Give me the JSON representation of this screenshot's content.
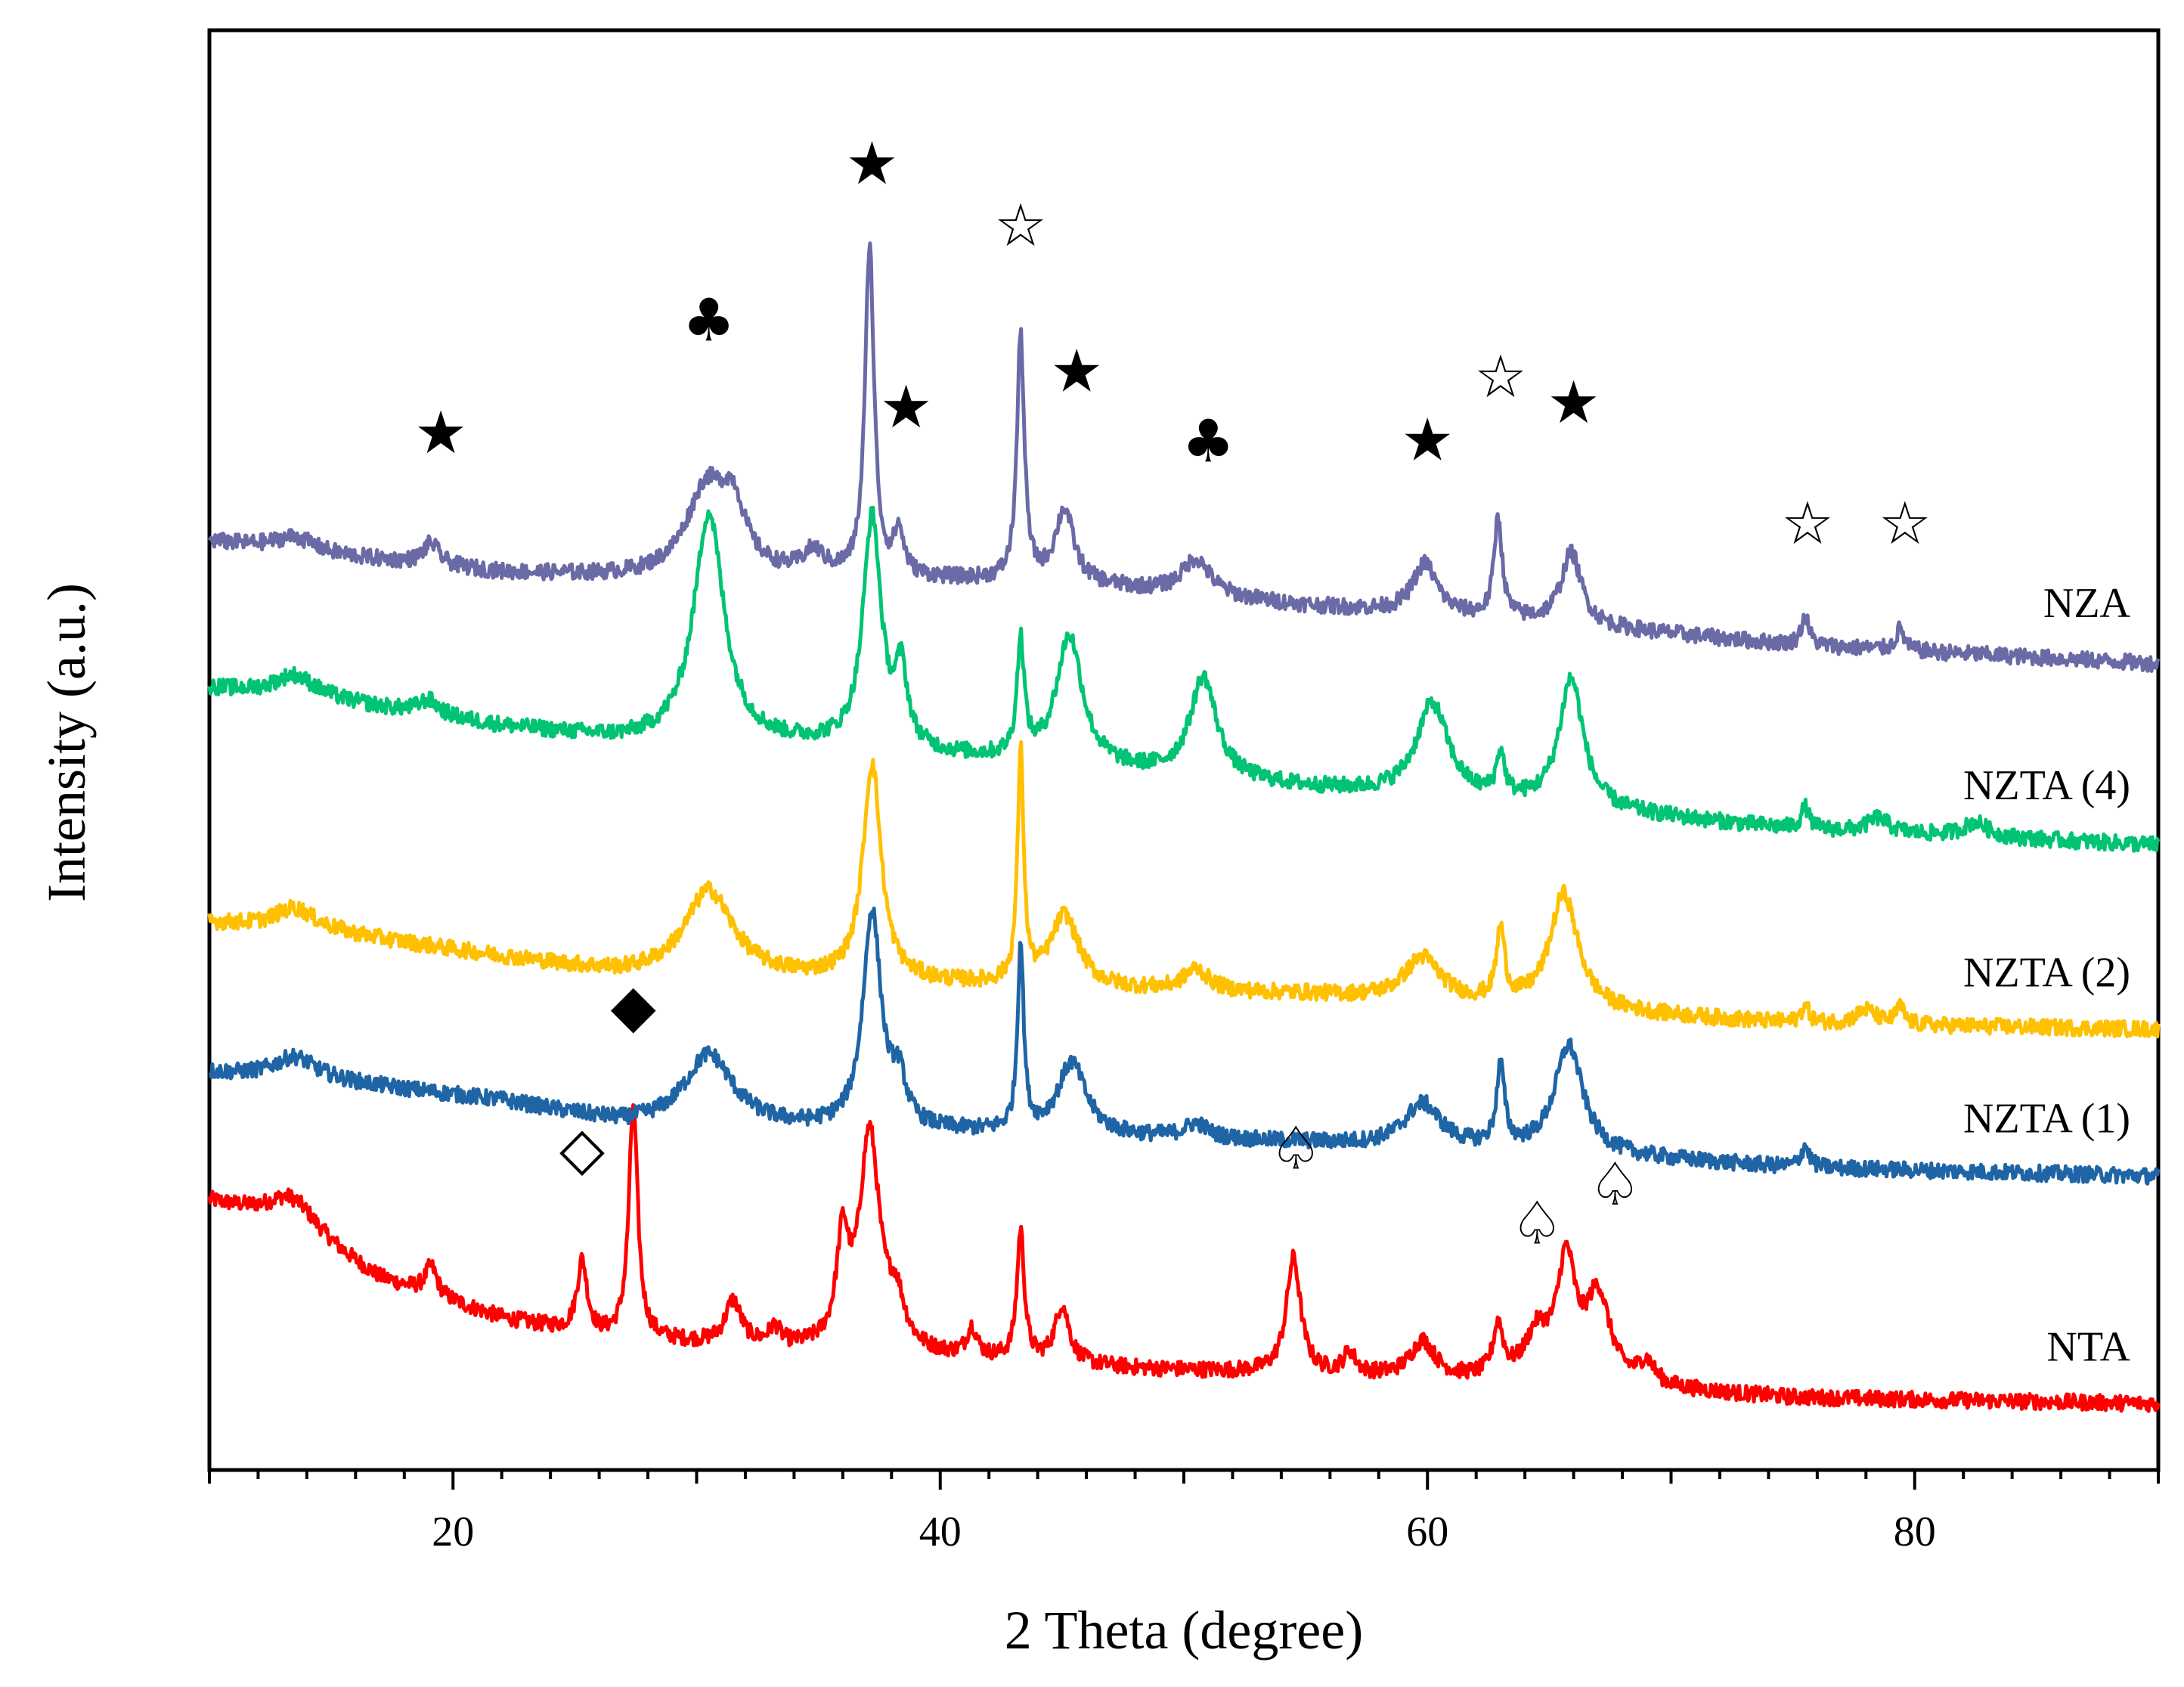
{
  "chart_data": {
    "type": "line",
    "title": "",
    "xlabel": "2 Theta (degree)",
    "ylabel": "Intensity (a.u.)",
    "xlim": [
      10,
      90
    ],
    "ylim": [
      0,
      100
    ],
    "xticks": [
      20,
      40,
      60,
      80
    ],
    "yticks": [],
    "grid": false,
    "legend": "inline labels at right end of each trace",
    "series": [
      {
        "name": "NTA",
        "color": "#ff0000",
        "baseline": [
          [
            10,
            18.6
          ],
          [
            13,
            17.3
          ],
          [
            17,
            13.2
          ],
          [
            22,
            10.5
          ],
          [
            26,
            9.2
          ],
          [
            33,
            8.4
          ],
          [
            40,
            7.8
          ],
          [
            48,
            7.0
          ],
          [
            55,
            6.6
          ],
          [
            65,
            6.0
          ],
          [
            75,
            5.0
          ],
          [
            90,
            4.6
          ]
        ],
        "peaks": [
          [
            13.5,
            2.0,
            1.2
          ],
          [
            19.1,
            2.0,
            0.3
          ],
          [
            25.3,
            5.0,
            0.25
          ],
          [
            27.4,
            16.2,
            0.22
          ],
          [
            31.5,
            3.0,
            0.4
          ],
          [
            33.2,
            1.2,
            0.3
          ],
          [
            36.0,
            7.0,
            0.3
          ],
          [
            37.1,
            15.0,
            0.5
          ],
          [
            38.2,
            3.0,
            0.4
          ],
          [
            41.3,
            2.0,
            0.25
          ],
          [
            43.3,
            9.0,
            0.18
          ],
          [
            45.0,
            4.0,
            0.35
          ],
          [
            54.5,
            8.0,
            0.35
          ],
          [
            56.8,
            1.5,
            0.3
          ],
          [
            59.8,
            2.5,
            0.6
          ],
          [
            62.9,
            3.5,
            0.25
          ],
          [
            64.5,
            3.0,
            0.6
          ],
          [
            65.7,
            8.0,
            0.45
          ],
          [
            67.0,
            6.0,
            0.6
          ],
          [
            69.0,
            1.5,
            0.4
          ]
        ]
      },
      {
        "name": "NZTA (1)",
        "color": "#1f65a6",
        "baseline": [
          [
            10,
            27.6
          ],
          [
            15,
            27.0
          ],
          [
            22,
            25.6
          ],
          [
            27,
            24.0
          ],
          [
            35,
            23.6
          ],
          [
            45,
            23.2
          ],
          [
            55,
            22.7
          ],
          [
            65,
            22.0
          ],
          [
            75,
            21.0
          ],
          [
            90,
            20.4
          ]
        ],
        "peaks": [
          [
            13.5,
            1.5,
            1.0
          ],
          [
            30.5,
            5.0,
            1.2
          ],
          [
            37.2,
            15.0,
            0.45
          ],
          [
            38.3,
            3.0,
            0.35
          ],
          [
            43.3,
            13.0,
            0.15
          ],
          [
            45.4,
            5.0,
            0.7
          ],
          [
            50.5,
            1.0,
            0.6
          ],
          [
            59.8,
            3.0,
            0.9
          ],
          [
            63.0,
            5.5,
            0.2
          ],
          [
            65.8,
            7.5,
            0.7
          ],
          [
            75.5,
            1.5,
            0.2
          ]
        ]
      },
      {
        "name": "NZTA (2)",
        "color": "#ffc000",
        "baseline": [
          [
            10,
            38.0
          ],
          [
            15,
            37.3
          ],
          [
            22,
            35.6
          ],
          [
            27,
            34.4
          ],
          [
            35,
            34.0
          ],
          [
            45,
            33.4
          ],
          [
            55,
            33.0
          ],
          [
            65,
            32.0
          ],
          [
            75,
            31.0
          ],
          [
            90,
            30.6
          ]
        ],
        "peaks": [
          [
            13.5,
            1.5,
            1.0
          ],
          [
            30.5,
            6.0,
            1.2
          ],
          [
            37.2,
            15.0,
            0.45
          ],
          [
            43.3,
            16.0,
            0.15
          ],
          [
            45.1,
            5.0,
            0.7
          ],
          [
            50.5,
            1.5,
            0.6
          ],
          [
            59.8,
            3.0,
            0.9
          ],
          [
            63.0,
            5.0,
            0.2
          ],
          [
            65.6,
            8.0,
            0.7
          ],
          [
            75.5,
            1.2,
            0.2
          ],
          [
            78.0,
            1.0,
            0.5
          ],
          [
            79.4,
            1.2,
            0.2
          ]
        ]
      },
      {
        "name": "NZTA (4)",
        "color": "#00c473",
        "baseline": [
          [
            10,
            54.3
          ],
          [
            15,
            53.4
          ],
          [
            22,
            51.6
          ],
          [
            27,
            50.6
          ],
          [
            35,
            50.2
          ],
          [
            45,
            48.8
          ],
          [
            55,
            47.3
          ],
          [
            65,
            46.0
          ],
          [
            75,
            44.5
          ],
          [
            90,
            43.4
          ]
        ],
        "peaks": [
          [
            13.5,
            1.5,
            1.0
          ],
          [
            19.0,
            1.0,
            0.5
          ],
          [
            30.5,
            16.0,
            0.75
          ],
          [
            37.2,
            16.0,
            0.45
          ],
          [
            38.4,
            5.0,
            0.3
          ],
          [
            43.3,
            8.0,
            0.18
          ],
          [
            45.3,
            9.0,
            0.65
          ],
          [
            50.8,
            7.0,
            0.65
          ],
          [
            60.2,
            6.5,
            0.8
          ],
          [
            63.0,
            3.0,
            0.2
          ],
          [
            65.9,
            9.0,
            0.6
          ],
          [
            75.5,
            1.5,
            0.2
          ],
          [
            78.5,
            1.0,
            0.5
          ],
          [
            82.5,
            1.0,
            0.6
          ]
        ]
      },
      {
        "name": "NZA",
        "color": "#6a6aa6",
        "baseline": [
          [
            10,
            64.5
          ],
          [
            15,
            63.5
          ],
          [
            22,
            62.3
          ],
          [
            27,
            62.0
          ],
          [
            35,
            62.0
          ],
          [
            45,
            61.6
          ],
          [
            55,
            60.0
          ],
          [
            65,
            58.8
          ],
          [
            75,
            57.3
          ],
          [
            90,
            56.0
          ]
        ],
        "peaks": [
          [
            13.5,
            1.0,
            1.0
          ],
          [
            19.1,
            1.5,
            0.4
          ],
          [
            30.4,
            6.0,
            1.0
          ],
          [
            31.5,
            4.0,
            0.6
          ],
          [
            34.8,
            1.5,
            0.5
          ],
          [
            37.1,
            23.0,
            0.22
          ],
          [
            38.3,
            3.0,
            0.25
          ],
          [
            43.3,
            17.0,
            0.18
          ],
          [
            45.1,
            5.0,
            0.45
          ],
          [
            50.5,
            2.5,
            0.7
          ],
          [
            59.9,
            3.5,
            0.6
          ],
          [
            62.9,
            7.0,
            0.2
          ],
          [
            65.9,
            5.0,
            0.5
          ],
          [
            75.5,
            2.0,
            0.2
          ],
          [
            79.4,
            1.5,
            0.2
          ]
        ]
      }
    ],
    "annotations": [
      {
        "symbol": "★",
        "fill": "#000000",
        "x": 19.5,
        "y": 72.1
      },
      {
        "symbol": "♣",
        "fill": "#000000",
        "x": 30.5,
        "y": 79.9
      },
      {
        "symbol": "★",
        "fill": "#000000",
        "x": 37.2,
        "y": 90.8
      },
      {
        "symbol": "★",
        "fill": "#000000",
        "x": 38.6,
        "y": 73.9
      },
      {
        "symbol": "★",
        "fill": "#000000",
        "x": 45.6,
        "y": 76.4
      },
      {
        "symbol": "♣",
        "fill": "#000000",
        "x": 51.0,
        "y": 71.5
      },
      {
        "symbol": "★",
        "fill": "#000000",
        "x": 60.0,
        "y": 71.6
      },
      {
        "symbol": "★",
        "fill": "#000000",
        "x": 66.0,
        "y": 74.2
      },
      {
        "symbol": "☆",
        "fill": "#000000",
        "x": 43.3,
        "y": 86.5
      },
      {
        "symbol": "☆",
        "fill": "#000000",
        "x": 63.0,
        "y": 76.0
      },
      {
        "symbol": "☆",
        "fill": "#000000",
        "x": 75.6,
        "y": 65.8
      },
      {
        "symbol": "☆",
        "fill": "#000000",
        "x": 79.6,
        "y": 65.8
      },
      {
        "symbol": "◆",
        "fill": "#000000",
        "x": 27.4,
        "y": 32.3
      },
      {
        "symbol": "◇",
        "fill": "#000000",
        "x": 25.3,
        "y": 22.4
      },
      {
        "symbol": "♤",
        "fill": "#000000",
        "x": 54.6,
        "y": 22.4
      },
      {
        "symbol": "♤",
        "fill": "#000000",
        "x": 64.5,
        "y": 17.2
      },
      {
        "symbol": "♤",
        "fill": "#000000",
        "x": 67.7,
        "y": 19.9
      }
    ]
  }
}
